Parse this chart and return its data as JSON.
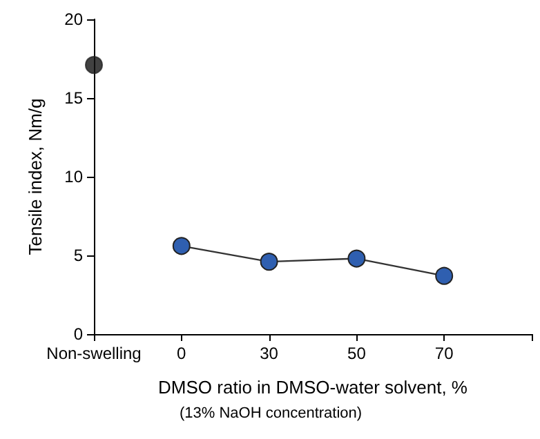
{
  "chart_data": {
    "type": "line",
    "xlabel": "DMSO ratio in DMSO-water solvent, %",
    "ylabel": "Tensile index, Nm/g",
    "annotations": [
      "(13% NaOH concentration)"
    ],
    "categories": [
      "Non-swelling",
      "0",
      "30",
      "50",
      "70",
      null
    ],
    "series": [
      {
        "type": "scatter",
        "color": "#111111",
        "values": [
          17.1,
          null,
          null,
          null,
          null,
          null
        ]
      },
      {
        "color": "#2f5fb0",
        "values": [
          null,
          5.6,
          4.6,
          4.8,
          3.7,
          null
        ]
      }
    ],
    "ylim": [
      0,
      20
    ],
    "yticks": [
      0,
      5,
      10,
      15,
      20
    ],
    "grid": false,
    "marker": "circle",
    "line_style": "solid"
  }
}
